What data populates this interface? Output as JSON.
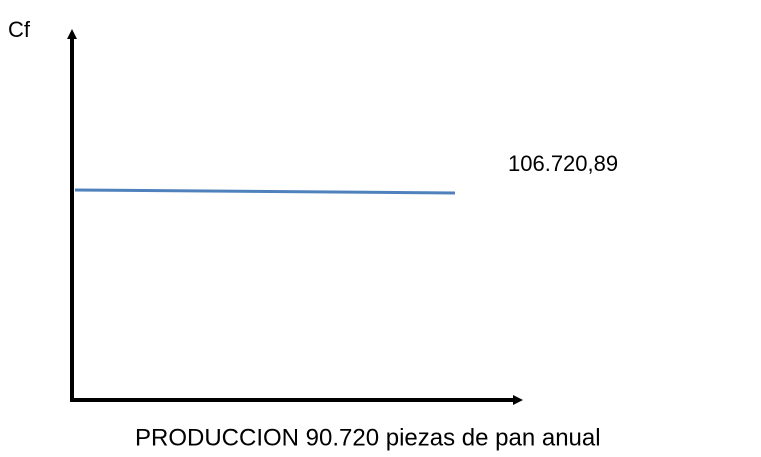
{
  "diagram": {
    "y_label": "Cf",
    "line_label": "106.720,89",
    "x_label": "PRODUCCION 90.720 piezas de pan anual"
  }
}
